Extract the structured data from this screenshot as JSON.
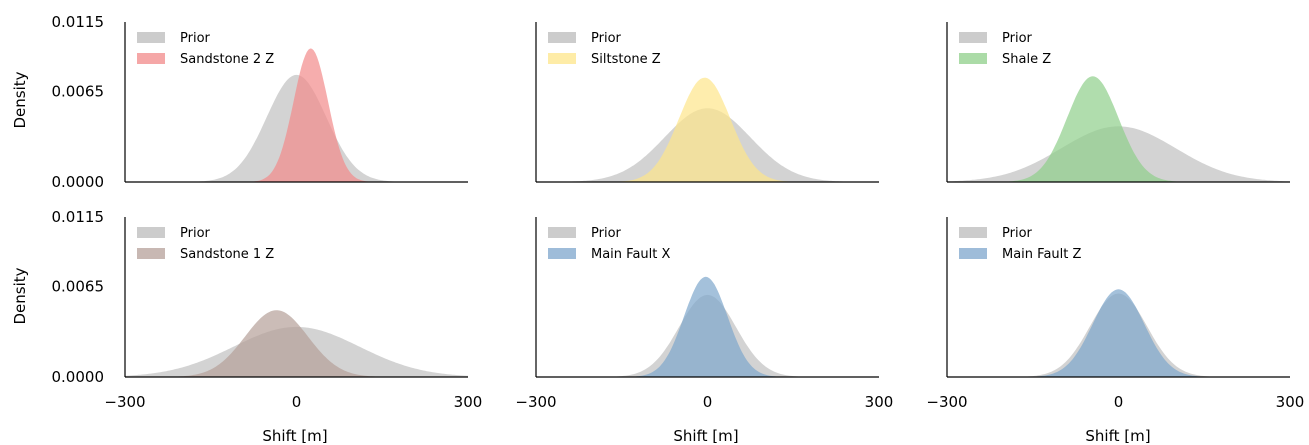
{
  "chart_data": {
    "type": "area",
    "xlim": [
      -300,
      300
    ],
    "ylim": [
      0,
      0.0115
    ],
    "x_ticks": [
      "−300",
      "0",
      "300"
    ],
    "y_ticks": [
      "0.0115",
      "0.0065",
      "0.0000"
    ],
    "y_tick_values": [
      0.0115,
      0.0065,
      0.0
    ],
    "xlabel": "Shift [m]",
    "ylabel": "Density",
    "grid": false,
    "legend_position": "upper-left",
    "panels": [
      {
        "series": [
          {
            "name": "Prior",
            "color": "#bbbbbb",
            "mean": 0,
            "sd": 52,
            "peak": 0.0077
          },
          {
            "name": "Sandstone 2 Z",
            "color": "#f28a8a",
            "mean": 25,
            "sd": 30,
            "peak": 0.0096
          }
        ]
      },
      {
        "series": [
          {
            "name": "Prior",
            "color": "#bbbbbb",
            "mean": 0,
            "sd": 75,
            "peak": 0.0053
          },
          {
            "name": "Siltstone Z",
            "color": "#fde58a",
            "mean": -5,
            "sd": 45,
            "peak": 0.0075
          }
        ]
      },
      {
        "series": [
          {
            "name": "Prior",
            "color": "#bbbbbb",
            "mean": 0,
            "sd": 100,
            "peak": 0.004
          },
          {
            "name": "Shale Z",
            "color": "#8fcf8a",
            "mean": -45,
            "sd": 45,
            "peak": 0.0076
          }
        ]
      },
      {
        "series": [
          {
            "name": "Prior",
            "color": "#bbbbbb",
            "mean": 0,
            "sd": 110,
            "peak": 0.0036
          },
          {
            "name": "Sandstone 1 Z",
            "color": "#b5a099",
            "mean": -35,
            "sd": 55,
            "peak": 0.0048
          }
        ]
      },
      {
        "series": [
          {
            "name": "Prior",
            "color": "#bbbbbb",
            "mean": 0,
            "sd": 50,
            "peak": 0.0059
          },
          {
            "name": "Main Fault X",
            "color": "#7ea6cc",
            "mean": -3,
            "sd": 38,
            "peak": 0.0072
          }
        ]
      },
      {
        "series": [
          {
            "name": "Prior",
            "color": "#bbbbbb",
            "mean": 0,
            "sd": 50,
            "peak": 0.006
          },
          {
            "name": "Main Fault Z",
            "color": "#7ea6cc",
            "mean": 0,
            "sd": 45,
            "peak": 0.0063
          }
        ]
      }
    ]
  }
}
